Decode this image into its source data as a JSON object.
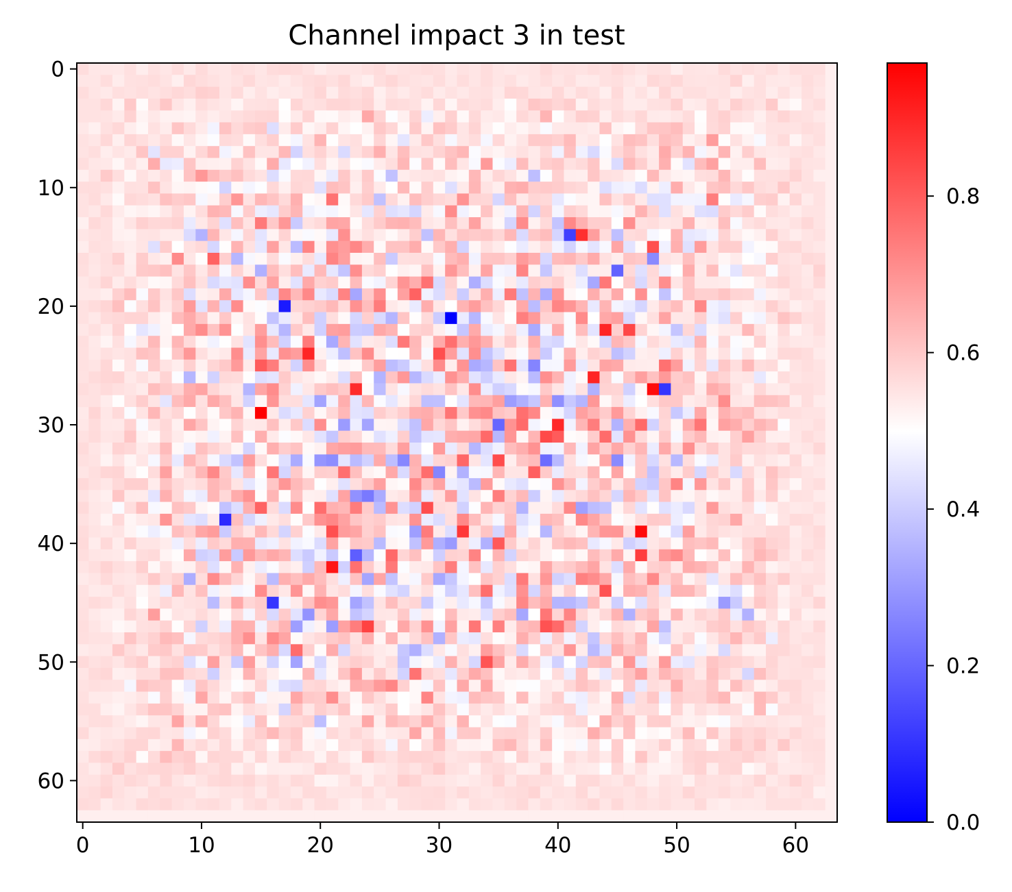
{
  "chart_data": {
    "type": "heatmap",
    "title": "Channel impact 3 in test",
    "xlabel": "",
    "ylabel": "",
    "grid": false,
    "legend": "none",
    "rows": 64,
    "cols": 64,
    "x_ticks": [
      0,
      10,
      20,
      30,
      40,
      50,
      60
    ],
    "y_ticks": [
      0,
      10,
      20,
      30,
      40,
      50,
      60
    ],
    "x_tick_labels": [
      "0",
      "10",
      "20",
      "30",
      "40",
      "50",
      "60"
    ],
    "y_tick_labels": [
      "0",
      "10",
      "20",
      "30",
      "40",
      "50",
      "60"
    ],
    "xlim": [
      -0.5,
      63.5
    ],
    "ylim": [
      63.5,
      -0.5
    ],
    "colormap": "bwr",
    "colormap_colors": [
      "#0000ff",
      "#ffffff",
      "#ff0000"
    ],
    "vmin": 0.0,
    "vmax": 0.97,
    "background_value": 0.5,
    "colorbar": {
      "ticks": [
        0.0,
        0.2,
        0.4,
        0.6,
        0.8
      ],
      "labels": [
        "0.0",
        "0.2",
        "0.4",
        "0.6",
        "0.8"
      ]
    },
    "notable_cells": [
      {
        "row": 21,
        "col": 31,
        "value": 0.0
      },
      {
        "row": 20,
        "col": 17,
        "value": 0.05
      },
      {
        "row": 38,
        "col": 12,
        "value": 0.08
      },
      {
        "row": 45,
        "col": 16,
        "value": 0.1
      },
      {
        "row": 14,
        "col": 41,
        "value": 0.12
      },
      {
        "row": 27,
        "col": 49,
        "value": 0.1
      },
      {
        "row": 29,
        "col": 15,
        "value": 0.97
      },
      {
        "row": 27,
        "col": 48,
        "value": 0.95
      },
      {
        "row": 39,
        "col": 47,
        "value": 0.95
      },
      {
        "row": 22,
        "col": 44,
        "value": 0.9
      },
      {
        "row": 14,
        "col": 42,
        "value": 0.88
      },
      {
        "row": 26,
        "col": 43,
        "value": 0.9
      },
      {
        "row": 24,
        "col": 19,
        "value": 0.9
      }
    ]
  }
}
